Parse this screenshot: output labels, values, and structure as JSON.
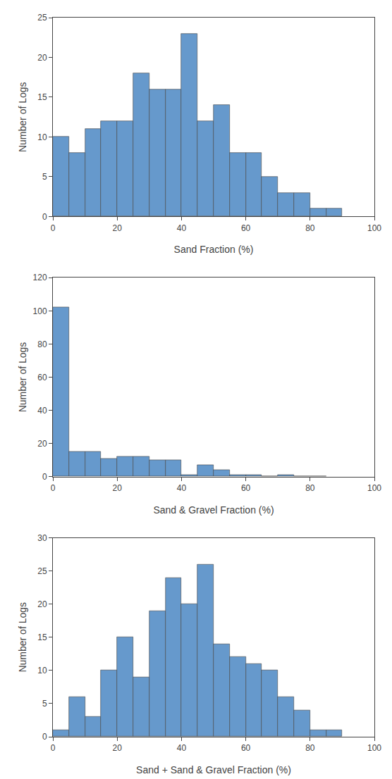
{
  "chart_data": [
    {
      "type": "histogram",
      "xlabel": "Sand Fraction (%)",
      "ylabel": "Number of Logs",
      "bins": [
        0,
        5,
        10,
        15,
        20,
        25,
        30,
        35,
        40,
        45,
        50,
        55,
        60,
        65,
        70,
        75,
        80,
        85,
        90
      ],
      "values": [
        10,
        8,
        11,
        12,
        12,
        18,
        16,
        16,
        23,
        12,
        14,
        8,
        8,
        5,
        3,
        3,
        1,
        1
      ],
      "color": "#6699CC",
      "xlim": [
        0,
        100
      ],
      "ylim": [
        0,
        25
      ],
      "xticks": [
        0,
        20,
        40,
        60,
        80,
        100
      ],
      "yticks": [
        0,
        5,
        10,
        15,
        20,
        25
      ],
      "grid": false
    },
    {
      "type": "histogram",
      "xlabel": "Sand & Gravel Fraction (%)",
      "ylabel": "Number of Logs",
      "bins": [
        0,
        5,
        10,
        15,
        20,
        25,
        30,
        35,
        40,
        45,
        50,
        55,
        60,
        65,
        70,
        75,
        80,
        85
      ],
      "values": [
        102,
        15,
        15,
        11,
        12,
        12,
        10,
        10,
        1,
        7,
        4,
        1,
        1,
        0,
        1,
        0,
        0
      ],
      "color": "#6699CC",
      "xlim": [
        0,
        100
      ],
      "ylim": [
        0,
        120
      ],
      "xticks": [
        0,
        20,
        40,
        60,
        80,
        100
      ],
      "yticks": [
        0,
        20,
        40,
        60,
        80,
        100,
        120
      ],
      "grid": false
    },
    {
      "type": "histogram",
      "xlabel": "Sand + Sand & Gravel Fraction (%)",
      "ylabel": "Number of Logs",
      "bins": [
        0,
        5,
        10,
        15,
        20,
        25,
        30,
        35,
        40,
        45,
        50,
        55,
        60,
        65,
        70,
        75,
        80,
        85,
        90
      ],
      "values": [
        1,
        6,
        3,
        10,
        15,
        9,
        19,
        24,
        20,
        26,
        14,
        12,
        11,
        10,
        6,
        4,
        1,
        1
      ],
      "color": "#6699CC",
      "xlim": [
        0,
        100
      ],
      "ylim": [
        0,
        30
      ],
      "xticks": [
        0,
        20,
        40,
        60,
        80,
        100
      ],
      "yticks": [
        0,
        5,
        10,
        15,
        20,
        25,
        30
      ],
      "grid": false
    }
  ]
}
